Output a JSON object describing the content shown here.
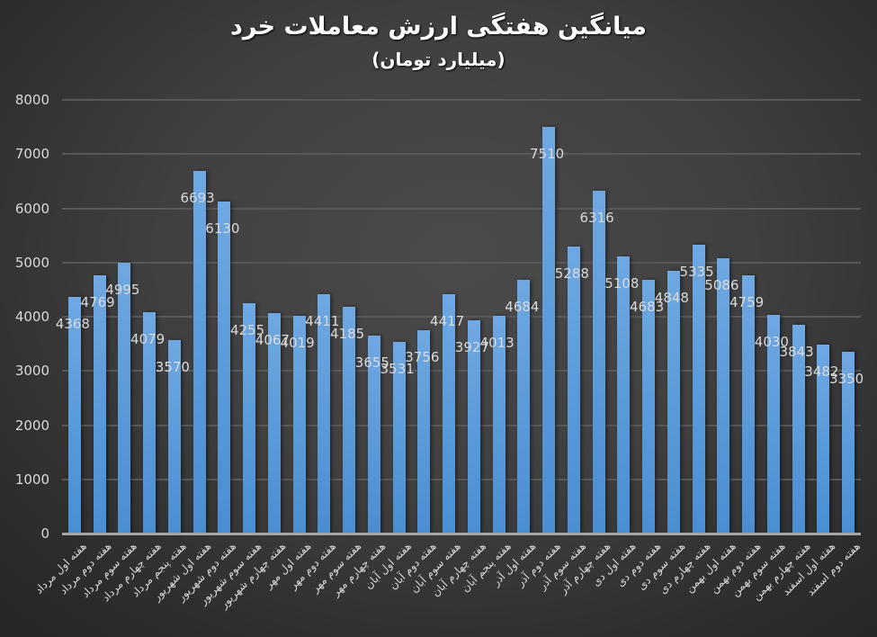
{
  "chart": {
    "title": "میانگین هفتگی ارزش معاملات خرد",
    "subtitle": "(میلیارد تومان)"
  },
  "colors": {
    "bar": "#5b9bd9",
    "background_center": "#4b4b4b",
    "background_edge": "#262626",
    "gridline": "#585858",
    "text": "#d9d9d9"
  },
  "chart_data": {
    "type": "bar",
    "title": "میانگین هفتگی ارزش معاملات خرد",
    "subtitle": "(میلیارد تومان)",
    "xlabel": "",
    "ylabel": "",
    "ylim": [
      0,
      8000
    ],
    "yticks": [
      0,
      1000,
      2000,
      3000,
      4000,
      5000,
      6000,
      7000,
      8000
    ],
    "grid": true,
    "legend": "none",
    "data_labels": true,
    "categories": [
      "هفته اول مرداد",
      "هفته دوم مرداد",
      "هفته سوم مرداد",
      "هفته چهارم مرداد",
      "هفته پنجم مرداد",
      "هفته اول شهریور",
      "هفته دوم شهریور",
      "هفته سوم شهریور",
      "هفته چهارم شهریور",
      "هفته اول مهر",
      "هفته دوم مهر",
      "هفته سوم مهر",
      "هفته چهارم مهر",
      "هفته اول آبان",
      "هفته دوم آبان",
      "هفته سوم آبان",
      "هفته چهارم آبان",
      "هفته پنجم آبان",
      "هفته اول آذر",
      "هفته دوم آذر",
      "هفته سوم آذر",
      "هفته چهارم آذر",
      "هفته اول دی",
      "هفته دوم دی",
      "هفته سوم دی",
      "هفته چهارم دی",
      "هفته اول بهمن",
      "هفته دوم بهمن",
      "هفته سوم بهمن",
      "هفته چهارم بهمن",
      "هفته اول اسفند",
      "هفته دوم اسفند"
    ],
    "values": [
      4368,
      4769,
      4995,
      4079,
      3570,
      6693,
      6130,
      4255,
      4067,
      4019,
      4411,
      4185,
      3655,
      3531,
      3756,
      4417,
      3927,
      4013,
      4684,
      7510,
      5288,
      6316,
      5108,
      4683,
      4848,
      5335,
      5086,
      4759,
      4030,
      3843,
      3482,
      3350
    ]
  }
}
